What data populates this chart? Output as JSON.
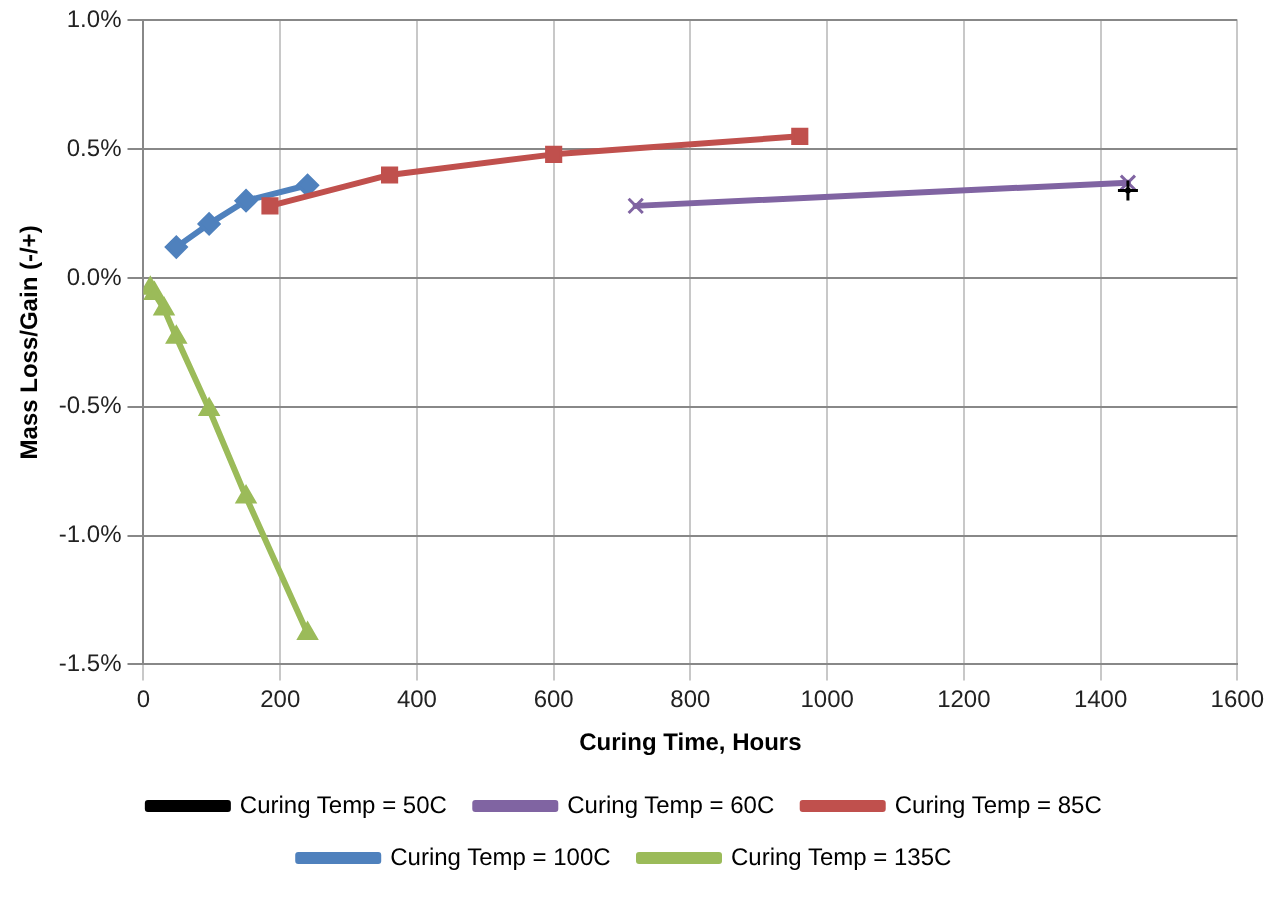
{
  "chart_data": {
    "type": "line",
    "xlabel": "Curing Time, Hours",
    "ylabel": "Mass Loss/Gain (-/+)",
    "xlim": [
      0,
      1600
    ],
    "xticks": [
      0,
      200,
      400,
      600,
      800,
      1000,
      1200,
      1400,
      1600
    ],
    "ylim": [
      -1.5,
      1.0
    ],
    "yticks": [
      {
        "value": -1.5,
        "label": "-1.5%"
      },
      {
        "value": -1.0,
        "label": "-1.0%"
      },
      {
        "value": -0.5,
        "label": "-0.5%"
      },
      {
        "value": 0,
        "label": "0.0%"
      },
      {
        "value": 0.5,
        "label": "0.5%"
      },
      {
        "value": 1.0,
        "label": "1.0%"
      }
    ],
    "grid": true,
    "legend": "bottom",
    "line_style": "solid",
    "series": [
      {
        "name": "Curing Temp = 50C",
        "color": "#000000",
        "marker": "cross",
        "x": [
          1440
        ],
        "values": [
          0.34
        ]
      },
      {
        "name": "Curing Temp = 60C",
        "color": "#8064a2",
        "marker": "x",
        "x": [
          720,
          1440
        ],
        "values": [
          0.28,
          0.37
        ]
      },
      {
        "name": "Curing Temp = 85C",
        "color": "#c0504d",
        "marker": "square",
        "x": [
          185,
          360,
          600,
          960
        ],
        "values": [
          0.28,
          0.4,
          0.48,
          0.55
        ]
      },
      {
        "name": "Curing Temp = 100C",
        "color": "#4f81bd",
        "marker": "diamond",
        "x": [
          48,
          96,
          150,
          240
        ],
        "values": [
          0.12,
          0.21,
          0.3,
          0.36
        ]
      },
      {
        "name": "Curing Temp = 135C",
        "color": "#9bbb59",
        "marker": "triangle",
        "x": [
          10,
          16,
          30,
          48,
          96,
          150,
          240
        ],
        "values": [
          -0.04,
          -0.06,
          -0.12,
          -0.23,
          -0.51,
          -0.85,
          -1.38
        ]
      }
    ]
  }
}
